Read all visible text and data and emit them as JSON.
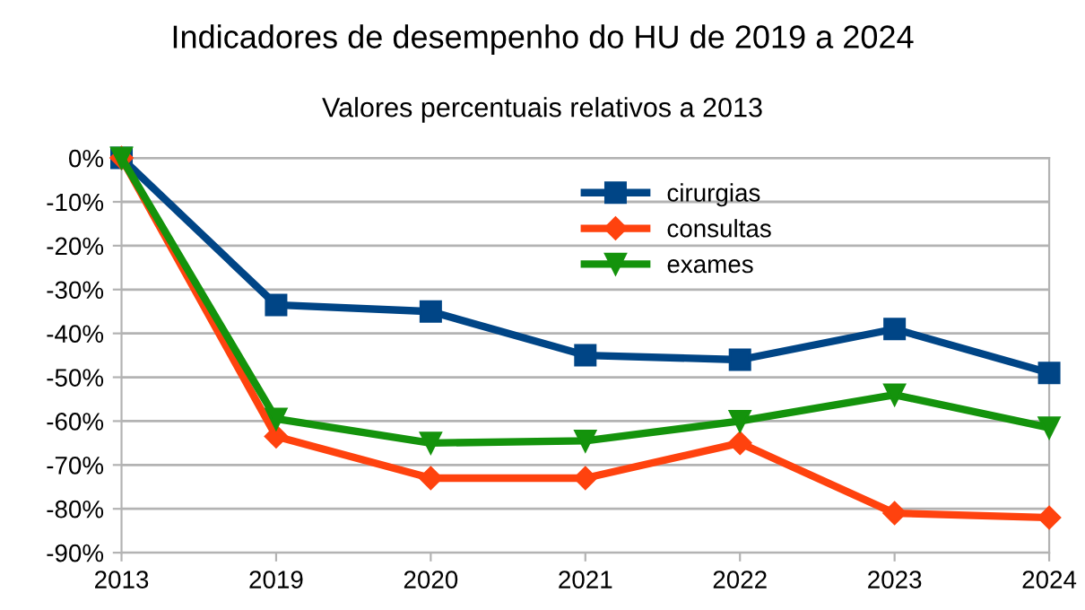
{
  "chart_data": {
    "type": "line",
    "title": "Indicadores de desempenho do HU de 2019 a 2024",
    "subtitle": "Valores percentuais relativos a 2013",
    "categories": [
      "2013",
      "2019",
      "2020",
      "2021",
      "2022",
      "2023",
      "2024"
    ],
    "series": [
      {
        "name": "cirurgias",
        "color": "#004586",
        "marker": "square",
        "values": [
          0,
          -33.5,
          -35,
          -45,
          -46,
          -39,
          -49
        ]
      },
      {
        "name": "consultas",
        "color": "#ff420e",
        "marker": "diamond",
        "values": [
          0,
          -63.5,
          -73,
          -73,
          -65,
          -81,
          -82
        ]
      },
      {
        "name": "exames",
        "color": "#14930c",
        "marker": "triangle",
        "values": [
          0,
          -59.5,
          -65,
          -64.5,
          -60,
          -54,
          -61.5
        ]
      }
    ],
    "ylim": [
      -90,
      0
    ],
    "yticks": [
      {
        "value": 0,
        "label": "0%"
      },
      {
        "value": -10,
        "label": "-10%"
      },
      {
        "value": -20,
        "label": "-20%"
      },
      {
        "value": -30,
        "label": "-30%"
      },
      {
        "value": -40,
        "label": "-40%"
      },
      {
        "value": -50,
        "label": "-50%"
      },
      {
        "value": -60,
        "label": "-60%"
      },
      {
        "value": -70,
        "label": "-70%"
      },
      {
        "value": -80,
        "label": "-80%"
      },
      {
        "value": -90,
        "label": "-90%"
      }
    ],
    "grid": "y",
    "legend": "top",
    "line_style": "solid"
  }
}
